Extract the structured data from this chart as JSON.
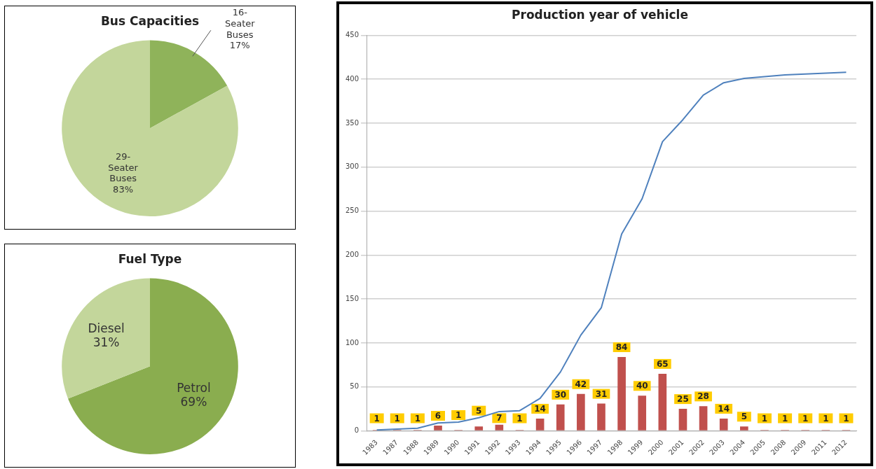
{
  "chart_data": [
    {
      "type": "pie",
      "title": "Bus Capacities",
      "categories": [
        "16-Seater Buses",
        "29-Seater Buses"
      ],
      "values": [
        17,
        83
      ],
      "colors": [
        "#8fb35a",
        "#c3d69b"
      ],
      "value_labels": [
        "17%",
        "83%"
      ],
      "legend": false
    },
    {
      "type": "pie",
      "title": "Fuel Type",
      "categories": [
        "Petrol",
        "Diesel"
      ],
      "values": [
        69,
        31
      ],
      "colors": [
        "#8aad4f",
        "#c3d69b"
      ],
      "value_labels": [
        "69%",
        "31%"
      ],
      "legend": false
    },
    {
      "type": "bar",
      "title": "Production year of vehicle",
      "categories": [
        "1983",
        "1987",
        "1988",
        "1989",
        "1990",
        "1991",
        "1992",
        "1993",
        "1994",
        "1995",
        "1996",
        "1997",
        "1998",
        "1999",
        "2000",
        "2001",
        "2002",
        "2003",
        "2004",
        "2005",
        "2008",
        "2009",
        "2011",
        "2012"
      ],
      "series": [
        {
          "type": "bar",
          "color": "#c0504d",
          "values": [
            1,
            1,
            1,
            6,
            1,
            5,
            7,
            1,
            14,
            30,
            42,
            31,
            84,
            40,
            65,
            25,
            28,
            14,
            5,
            1,
            1,
            1,
            1,
            1
          ],
          "value_labels": [
            "1",
            "1",
            "1",
            "6",
            "1",
            "5",
            "7",
            "1",
            "14",
            "30",
            "42",
            "31",
            "84",
            "40",
            "65",
            "25",
            "28",
            "14",
            "5",
            "1",
            "1",
            "1",
            "1",
            "1"
          ]
        },
        {
          "type": "line",
          "color": "#4f81bd",
          "marker": "none",
          "values": [
            1,
            2,
            3,
            9,
            10,
            15,
            22,
            23,
            37,
            67,
            109,
            140,
            224,
            264,
            329,
            354,
            382,
            396,
            401,
            403,
            405,
            406,
            407,
            408
          ]
        }
      ],
      "ylim": [
        0,
        450
      ],
      "yticks": [
        0,
        50,
        100,
        150,
        200,
        250,
        300,
        350,
        400,
        450
      ],
      "grid": "y",
      "legend": false
    }
  ]
}
